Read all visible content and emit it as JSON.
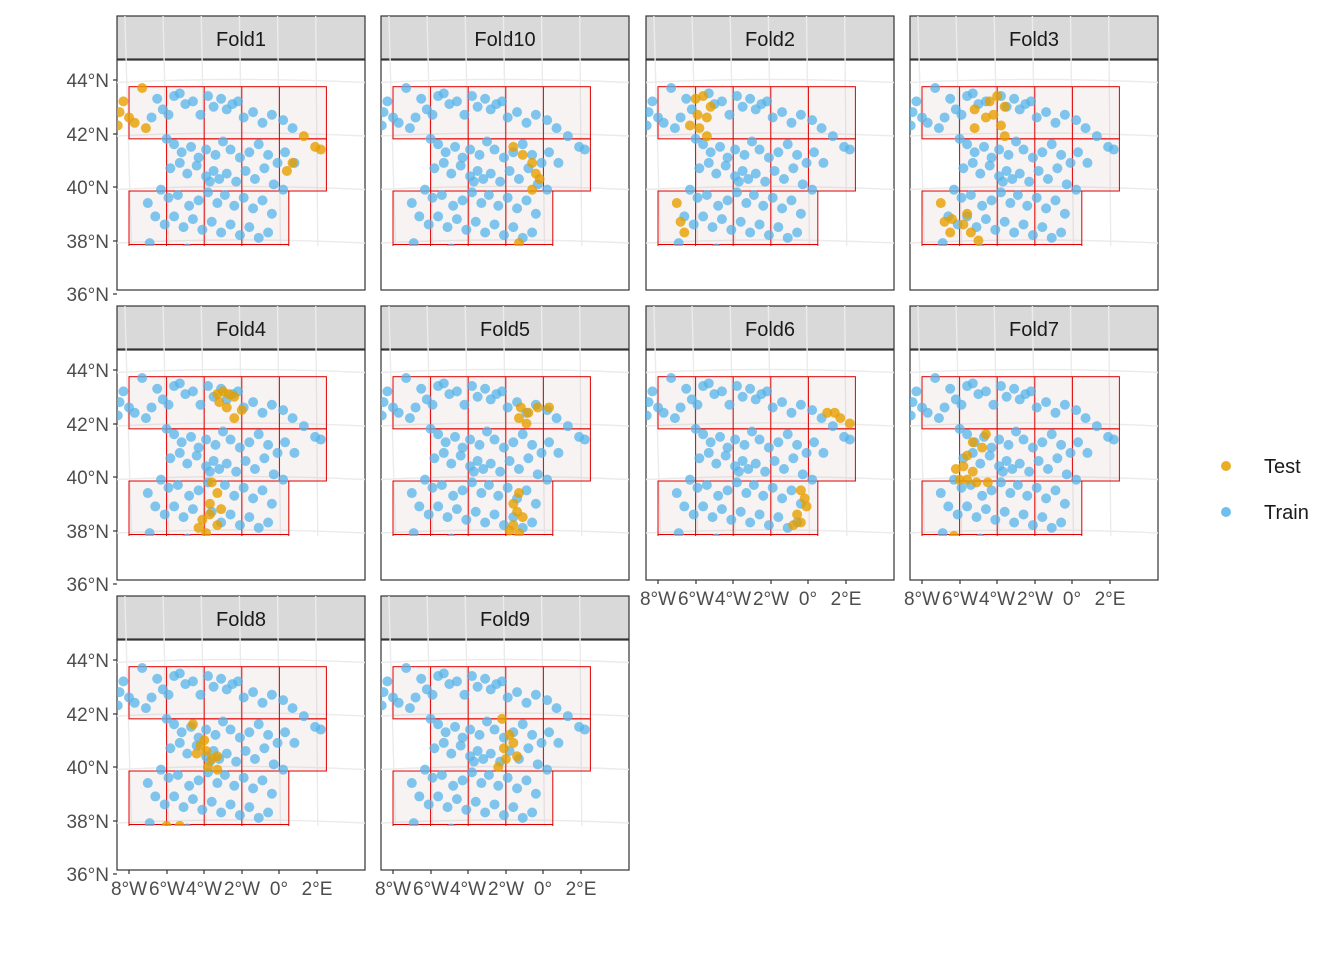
{
  "chart_data": {
    "type": "scatter",
    "subtype": "faceted map of sample points with spatial blocks",
    "facets": [
      "Fold1",
      "Fold10",
      "Fold2",
      "Fold3",
      "Fold4",
      "Fold5",
      "Fold6",
      "Fold7",
      "Fold8",
      "Fold9"
    ],
    "xlim": [
      -8.5,
      2.6
    ],
    "ylim": [
      35.6,
      44.4
    ],
    "x_ticks": [
      -8,
      -6,
      -4,
      -2,
      0,
      2
    ],
    "x_tick_labels": [
      "8°W",
      "6°W",
      "4°W",
      "2°W",
      "0°",
      "2°E"
    ],
    "y_ticks": [
      36,
      38,
      40,
      42,
      44
    ],
    "y_tick_labels": [
      "36°N",
      "38°N",
      "40°N",
      "42°N",
      "44°N"
    ],
    "grid": true,
    "legend": {
      "position": "right",
      "entries": [
        {
          "label": "Test",
          "color": "#E69F00"
        },
        {
          "label": "Train",
          "color": "#56B4E9"
        }
      ]
    },
    "blocks": {
      "x_edges": [
        -8.0,
        -6.0,
        -4.0,
        -2.0,
        0.0,
        2.5
      ],
      "north_row": {
        "x": [
          -8.0,
          2.5
        ],
        "y": [
          41.8,
          43.75
        ]
      },
      "middle_row": {
        "x": [
          -6.0,
          2.5
        ],
        "y": [
          39.85,
          41.8
        ]
      },
      "south_rows": {
        "x": [
          -8.0,
          0.5
        ],
        "y": [
          35.9,
          39.85
        ]
      }
    },
    "points": [
      [
        -8.6,
        42.3
      ],
      [
        -8.5,
        42.8
      ],
      [
        -8.3,
        43.2
      ],
      [
        -8.0,
        42.6
      ],
      [
        -7.7,
        42.4
      ],
      [
        -7.3,
        43.7
      ],
      [
        -7.1,
        42.2
      ],
      [
        -6.8,
        42.6
      ],
      [
        -6.5,
        43.3
      ],
      [
        -6.2,
        42.9
      ],
      [
        -5.9,
        42.7
      ],
      [
        -5.6,
        43.4
      ],
      [
        -5.3,
        43.5
      ],
      [
        -5.0,
        43.1
      ],
      [
        -4.6,
        43.2
      ],
      [
        -4.2,
        42.7
      ],
      [
        -3.8,
        43.4
      ],
      [
        -3.5,
        43.0
      ],
      [
        -3.1,
        43.3
      ],
      [
        -2.8,
        42.9
      ],
      [
        -2.5,
        43.1
      ],
      [
        -2.2,
        43.2
      ],
      [
        -1.9,
        42.6
      ],
      [
        -1.4,
        42.8
      ],
      [
        -0.9,
        42.4
      ],
      [
        -0.4,
        42.7
      ],
      [
        0.2,
        42.5
      ],
      [
        0.7,
        42.2
      ],
      [
        1.3,
        41.9
      ],
      [
        1.9,
        41.5
      ],
      [
        2.2,
        41.4
      ],
      [
        -6.0,
        41.8
      ],
      [
        -5.6,
        41.6
      ],
      [
        -5.2,
        41.3
      ],
      [
        -4.7,
        41.5
      ],
      [
        -4.3,
        41.1
      ],
      [
        -3.9,
        41.4
      ],
      [
        -3.4,
        41.2
      ],
      [
        -3.0,
        41.7
      ],
      [
        -2.6,
        41.4
      ],
      [
        -2.1,
        41.1
      ],
      [
        -1.6,
        41.3
      ],
      [
        -1.1,
        41.6
      ],
      [
        -0.6,
        41.2
      ],
      [
        -0.1,
        40.9
      ],
      [
        0.3,
        41.3
      ],
      [
        0.8,
        40.9
      ],
      [
        -5.8,
        40.7
      ],
      [
        -5.3,
        40.9
      ],
      [
        -4.9,
        40.5
      ],
      [
        -4.4,
        40.8
      ],
      [
        -3.9,
        40.4
      ],
      [
        -3.7,
        40.2
      ],
      [
        -3.5,
        40.6
      ],
      [
        -3.2,
        40.3
      ],
      [
        -2.8,
        40.5
      ],
      [
        -2.3,
        40.2
      ],
      [
        -1.8,
        40.6
      ],
      [
        -1.3,
        40.3
      ],
      [
        -0.8,
        40.7
      ],
      [
        -0.3,
        40.1
      ],
      [
        0.2,
        39.9
      ],
      [
        -6.3,
        39.9
      ],
      [
        -5.9,
        39.6
      ],
      [
        -5.4,
        39.7
      ],
      [
        -4.8,
        39.3
      ],
      [
        -4.3,
        39.5
      ],
      [
        -3.8,
        39.8
      ],
      [
        -3.3,
        39.4
      ],
      [
        -2.9,
        39.7
      ],
      [
        -2.4,
        39.3
      ],
      [
        -1.9,
        39.6
      ],
      [
        -1.4,
        39.2
      ],
      [
        -0.9,
        39.5
      ],
      [
        -0.4,
        39.0
      ],
      [
        -7.0,
        39.4
      ],
      [
        -6.6,
        38.9
      ],
      [
        -6.1,
        38.6
      ],
      [
        -5.6,
        38.9
      ],
      [
        -5.1,
        38.5
      ],
      [
        -4.6,
        38.8
      ],
      [
        -4.1,
        38.4
      ],
      [
        -3.6,
        38.7
      ],
      [
        -3.1,
        38.3
      ],
      [
        -2.6,
        38.6
      ],
      [
        -2.1,
        38.2
      ],
      [
        -1.6,
        38.5
      ],
      [
        -1.1,
        38.1
      ],
      [
        -0.6,
        38.3
      ],
      [
        -6.9,
        37.9
      ],
      [
        -6.4,
        37.5
      ],
      [
        -5.9,
        37.6
      ],
      [
        -5.4,
        37.3
      ],
      [
        -4.9,
        37.7
      ],
      [
        -4.4,
        37.2
      ],
      [
        -3.9,
        37.5
      ],
      [
        -3.4,
        37.1
      ],
      [
        -2.9,
        37.4
      ],
      [
        -2.4,
        37.0
      ],
      [
        -1.9,
        37.3
      ],
      [
        -1.4,
        37.6
      ],
      [
        -7.3,
        37.2
      ],
      [
        -6.8,
        37.1
      ],
      [
        -6.3,
        36.8
      ],
      [
        -5.8,
        36.6
      ],
      [
        -5.3,
        36.7
      ],
      [
        -4.8,
        36.5
      ],
      [
        -4.3,
        36.8
      ],
      [
        -3.8,
        36.9
      ],
      [
        -3.3,
        36.7
      ],
      [
        -2.8,
        36.8
      ],
      [
        -6.1,
        36.3
      ],
      [
        -5.6,
        36.2
      ],
      [
        -5.4,
        35.9
      ]
    ],
    "test_points_by_fold": {
      "Fold1": [
        [
          -8.6,
          42.3
        ],
        [
          -8.5,
          42.8
        ],
        [
          -8.3,
          43.2
        ],
        [
          -8.0,
          42.6
        ],
        [
          -7.7,
          42.4
        ],
        [
          -7.3,
          43.7
        ],
        [
          -7.1,
          42.2
        ],
        [
          1.3,
          41.9
        ],
        [
          1.9,
          41.5
        ],
        [
          2.2,
          41.4
        ],
        [
          0.7,
          40.9
        ],
        [
          0.4,
          40.6
        ],
        [
          -2.2,
          37.5
        ]
      ],
      "Fold10": [
        [
          -1.6,
          41.5
        ],
        [
          -1.1,
          41.2
        ],
        [
          -0.6,
          40.9
        ],
        [
          -0.4,
          40.5
        ],
        [
          -0.2,
          40.3
        ],
        [
          -0.6,
          39.9
        ],
        [
          -1.3,
          37.9
        ],
        [
          -1.8,
          37.6
        ],
        [
          -3.0,
          37.4
        ],
        [
          -3.4,
          37.0
        ],
        [
          -3.2,
          36.6
        ]
      ],
      "Fold2": [
        [
          -6.0,
          43.3
        ],
        [
          -5.6,
          43.4
        ],
        [
          -5.2,
          43.0
        ],
        [
          -5.9,
          42.7
        ],
        [
          -5.4,
          42.6
        ],
        [
          -6.3,
          42.3
        ],
        [
          -5.8,
          42.2
        ],
        [
          -5.4,
          41.9
        ],
        [
          -7.0,
          39.4
        ],
        [
          -6.8,
          38.7
        ],
        [
          -6.6,
          38.3
        ]
      ],
      "Fold3": [
        [
          -4.4,
          43.2
        ],
        [
          -4.0,
          43.4
        ],
        [
          -3.6,
          43.0
        ],
        [
          -4.2,
          42.7
        ],
        [
          -4.6,
          42.6
        ],
        [
          -3.8,
          42.3
        ],
        [
          -5.2,
          42.2
        ],
        [
          -3.6,
          41.9
        ],
        [
          -5.2,
          42.9
        ],
        [
          -7.0,
          39.4
        ],
        [
          -6.8,
          38.7
        ],
        [
          -6.4,
          38.8
        ],
        [
          -5.8,
          38.6
        ],
        [
          -5.4,
          38.3
        ],
        [
          -5.0,
          38.0
        ],
        [
          -6.5,
          38.3
        ],
        [
          -5.6,
          39.0
        ]
      ],
      "Fold4": [
        [
          -3.3,
          43.1
        ],
        [
          -3.0,
          43.2
        ],
        [
          -2.7,
          43.1
        ],
        [
          -2.4,
          43.0
        ],
        [
          -3.2,
          42.8
        ],
        [
          -2.8,
          42.6
        ],
        [
          -2.4,
          42.2
        ],
        [
          -2.0,
          42.5
        ],
        [
          -3.6,
          39.8
        ],
        [
          -3.3,
          39.4
        ],
        [
          -3.7,
          39.0
        ],
        [
          -4.1,
          38.4
        ],
        [
          -3.7,
          38.6
        ],
        [
          -3.1,
          38.8
        ],
        [
          -3.9,
          37.9
        ],
        [
          -4.3,
          38.1
        ],
        [
          -3.3,
          38.2
        ]
      ],
      "Fold5": [
        [
          -1.2,
          42.6
        ],
        [
          -0.8,
          42.4
        ],
        [
          -0.3,
          42.6
        ],
        [
          0.3,
          42.6
        ],
        [
          -1.3,
          42.2
        ],
        [
          -0.9,
          42.0
        ],
        [
          -1.3,
          39.4
        ],
        [
          -1.6,
          39.0
        ],
        [
          -1.4,
          38.7
        ],
        [
          -1.1,
          38.5
        ],
        [
          -1.6,
          38.2
        ],
        [
          -1.8,
          38.0
        ],
        [
          -1.3,
          37.9
        ]
      ],
      "Fold6": [
        [
          1.0,
          42.4
        ],
        [
          1.4,
          42.4
        ],
        [
          1.7,
          42.2
        ],
        [
          2.2,
          42.0
        ],
        [
          -0.4,
          39.5
        ],
        [
          -0.2,
          39.2
        ],
        [
          -0.1,
          38.9
        ],
        [
          -0.6,
          38.6
        ],
        [
          -0.4,
          38.3
        ],
        [
          -0.8,
          38.2
        ]
      ],
      "Fold7": [
        [
          -4.6,
          41.6
        ],
        [
          -4.8,
          41.1
        ],
        [
          -5.3,
          41.3
        ],
        [
          -5.6,
          40.8
        ],
        [
          -5.8,
          40.4
        ],
        [
          -5.3,
          40.2
        ],
        [
          -6.2,
          40.3
        ],
        [
          -5.6,
          39.9
        ],
        [
          -6.0,
          39.9
        ],
        [
          -5.1,
          39.8
        ],
        [
          -4.5,
          39.8
        ],
        [
          -6.3,
          37.8
        ],
        [
          -6.7,
          37.3
        ],
        [
          -7.1,
          37.2
        ],
        [
          -6.5,
          37.0
        ]
      ],
      "Fold8": [
        [
          -4.6,
          41.6
        ],
        [
          -4.0,
          41.0
        ],
        [
          -4.4,
          40.5
        ],
        [
          -3.9,
          40.6
        ],
        [
          -3.6,
          40.3
        ],
        [
          -3.3,
          40.4
        ],
        [
          -3.8,
          40.0
        ],
        [
          -3.3,
          39.9
        ],
        [
          -4.2,
          40.8
        ],
        [
          -6.0,
          37.8
        ],
        [
          -5.3,
          37.8
        ],
        [
          -6.0,
          37.3
        ],
        [
          -5.6,
          37.1
        ],
        [
          -6.3,
          36.7
        ],
        [
          -6.0,
          36.4
        ],
        [
          -5.7,
          36.0
        ],
        [
          -4.7,
          37.0
        ]
      ],
      "Fold9": [
        [
          -2.2,
          41.8
        ],
        [
          -1.8,
          41.2
        ],
        [
          -1.6,
          40.9
        ],
        [
          -2.1,
          40.7
        ],
        [
          -1.4,
          40.4
        ],
        [
          -2.0,
          40.3
        ],
        [
          -2.4,
          40.0
        ],
        [
          -4.2,
          37.5
        ],
        [
          -4.0,
          37.1
        ],
        [
          -4.6,
          36.7
        ],
        [
          -5.0,
          36.4
        ],
        [
          -4.9,
          36.6
        ]
      ]
    }
  }
}
